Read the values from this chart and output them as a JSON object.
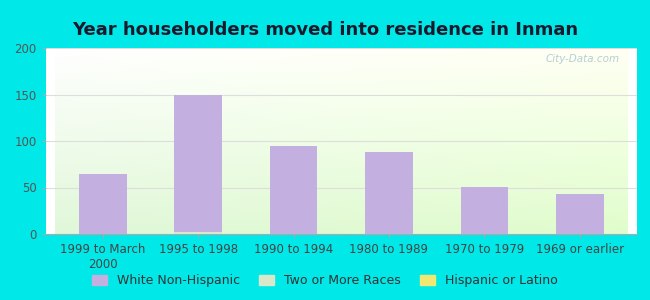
{
  "title": "Year householders moved into residence in Inman",
  "categories": [
    "1999 to March\n2000",
    "1995 to 1998",
    "1990 to 1994",
    "1980 to 1989",
    "1970 to 1979",
    "1969 or earlier"
  ],
  "series": [
    {
      "name": "White Non-Hispanic",
      "values": [
        65,
        150,
        95,
        88,
        51,
        43
      ],
      "color": "#c4b0e0"
    },
    {
      "name": "Two or More Races",
      "values": [
        0,
        2,
        0,
        0,
        0,
        0
      ],
      "color": "#d8e8c8"
    },
    {
      "name": "Hispanic or Latino",
      "values": [
        0,
        0,
        0,
        0,
        0,
        0
      ],
      "color": "#f0e870"
    }
  ],
  "ylim": [
    0,
    200
  ],
  "yticks": [
    0,
    50,
    100,
    150,
    200
  ],
  "background_outer": "#00e8e8",
  "grid_color": "#dddddd",
  "bar_width": 0.5,
  "title_fontsize": 13,
  "tick_fontsize": 8.5,
  "legend_fontsize": 9,
  "watermark": "City-Data.com"
}
